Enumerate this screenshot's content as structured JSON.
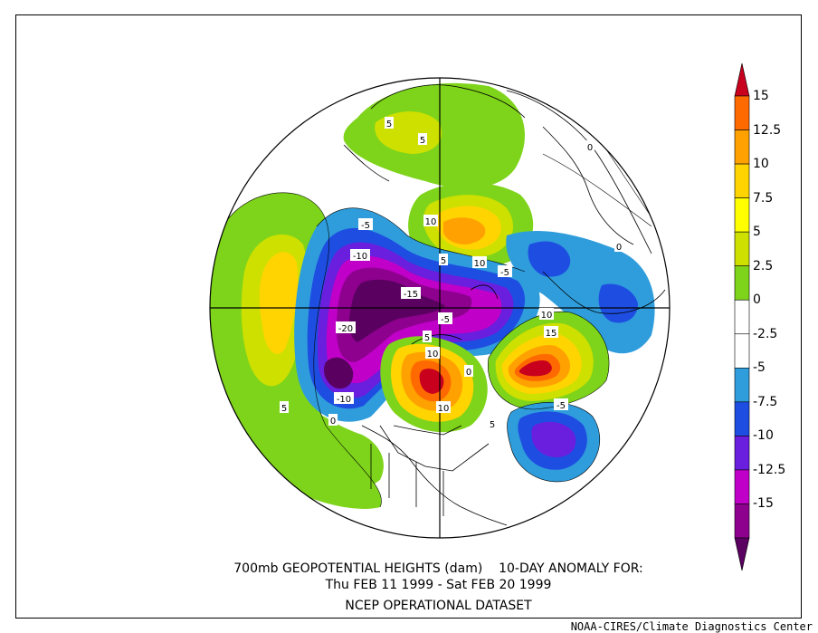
{
  "figure": {
    "title_line1": "700mb GEOPOTENTIAL HEIGHTS (dam)    10-DAY ANOMALY FOR:",
    "title_line2": "Thu FEB 11 1999 - Sat FEB 20 1999",
    "title_line3": "NCEP OPERATIONAL DATASET",
    "credit": "NOAA-CIRES/Climate Diagnostics Center"
  },
  "colorbar": {
    "labels": [
      "15",
      "12.5",
      "10",
      "7.5",
      "5",
      "2.5",
      "0",
      "-2.5",
      "-5",
      "-7.5",
      "-10",
      "-12.5",
      "-15"
    ],
    "colors": [
      "#c8001e",
      "#ff6a00",
      "#ffa100",
      "#ffd400",
      "#ffff00",
      "#cde000",
      "#7ed41a",
      "#ffffff",
      "#ffffff",
      "#2f9ddc",
      "#1e4ee1",
      "#6a1ede",
      "#c000c8",
      "#8e008e",
      "#5a0060"
    ]
  },
  "contour_labels": [
    {
      "text": "5",
      "id": "c5-siberia"
    },
    {
      "text": "5",
      "id": "c5-northasia"
    },
    {
      "text": "0",
      "id": "c0-ne"
    },
    {
      "text": "0",
      "id": "c0-east"
    },
    {
      "text": "-5",
      "id": "cm5-alaska"
    },
    {
      "text": "10",
      "id": "c10-arctic"
    },
    {
      "text": "-10",
      "id": "cm10-nw"
    },
    {
      "text": "-15",
      "id": "cm15-center"
    },
    {
      "text": "5",
      "id": "c5-pole"
    },
    {
      "text": "10",
      "id": "c10-pole"
    },
    {
      "text": "-5",
      "id": "cm5-europe"
    },
    {
      "text": "-20",
      "id": "cm20-west"
    },
    {
      "text": "-5",
      "id": "cm5-pole"
    },
    {
      "text": "10",
      "id": "c10-greenland"
    },
    {
      "text": "15",
      "id": "c15-atlantic"
    },
    {
      "text": "5",
      "id": "c5-canada"
    },
    {
      "text": "10",
      "id": "c10-hudson"
    },
    {
      "text": "-10",
      "id": "cm10-sw"
    },
    {
      "text": "10",
      "id": "c10-ne-america"
    },
    {
      "text": "-5",
      "id": "cm5-atlantic"
    },
    {
      "text": "5",
      "id": "c5-pacific"
    },
    {
      "text": "0",
      "id": "c0-pacific"
    },
    {
      "text": "5",
      "id": "c5-east-us"
    },
    {
      "text": "0",
      "id": "c0-us"
    }
  ]
}
